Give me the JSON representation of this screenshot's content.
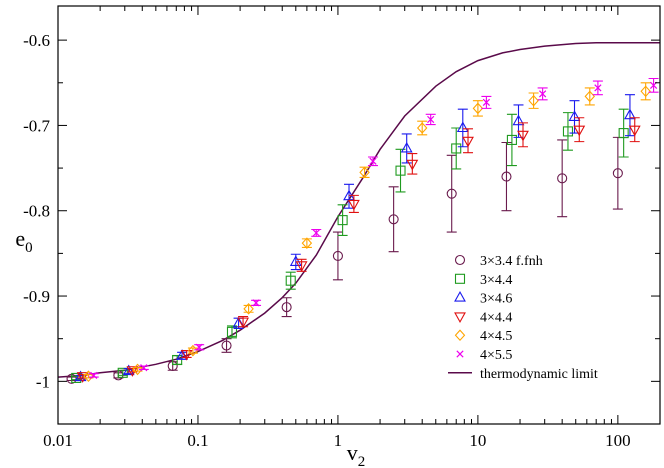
{
  "chart_data": {
    "type": "scatter",
    "xscale": "log",
    "xlim": [
      0.01,
      200
    ],
    "ylim": [
      -1.05,
      -0.56
    ],
    "xlabel": "v",
    "xlabel_sub": "2",
    "ylabel": "e",
    "ylabel_sub": "0",
    "grid": false,
    "legend_position": "center-right",
    "xticks": [
      0.01,
      0.1,
      1,
      10,
      100
    ],
    "xtick_labels": [
      "0.01",
      "0.1",
      "1",
      "10",
      "100"
    ],
    "yticks": [
      -1.0,
      -0.9,
      -0.8,
      -0.7,
      -0.6
    ],
    "ytick_labels": [
      "-1",
      "-0.9",
      "-0.8",
      "-0.7",
      "-0.6"
    ],
    "series": [
      {
        "name": "3×3.4  f.fnh",
        "marker": "circle",
        "color": "#6a1b4d",
        "x": [
          0.0125,
          0.027,
          0.066,
          0.16,
          0.43,
          1.0,
          2.5,
          6.5,
          16,
          40,
          100
        ],
        "y": [
          -0.997,
          -0.993,
          -0.982,
          -0.958,
          -0.913,
          -0.853,
          -0.81,
          -0.78,
          -0.76,
          -0.762,
          -0.756
        ],
        "err": [
          0.002,
          0.003,
          0.005,
          0.008,
          0.011,
          0.028,
          0.038,
          0.045,
          0.04,
          0.045,
          0.042
        ]
      },
      {
        "name": "3×4.4",
        "marker": "square",
        "color": "#1f9a1f",
        "x": [
          0.0135,
          0.029,
          0.071,
          0.175,
          0.46,
          1.08,
          2.8,
          7.0,
          17.5,
          44,
          110
        ],
        "y": [
          -0.996,
          -0.99,
          -0.975,
          -0.942,
          -0.882,
          -0.811,
          -0.753,
          -0.727,
          -0.717,
          -0.707,
          -0.709
        ],
        "err": [
          0.002,
          0.003,
          0.005,
          0.007,
          0.01,
          0.018,
          0.025,
          0.024,
          0.03,
          0.022,
          0.028
        ]
      },
      {
        "name": "3×4.6",
        "marker": "triangle-up",
        "color": "#1a1aee",
        "x": [
          0.0145,
          0.032,
          0.077,
          0.195,
          0.5,
          1.2,
          3.1,
          7.8,
          19.5,
          49,
          122
        ],
        "y": [
          -0.995,
          -0.988,
          -0.97,
          -0.932,
          -0.86,
          -0.783,
          -0.727,
          -0.703,
          -0.695,
          -0.69,
          -0.688
        ],
        "err": [
          0.002,
          0.003,
          0.004,
          0.006,
          0.009,
          0.014,
          0.017,
          0.022,
          0.019,
          0.019,
          0.024
        ]
      },
      {
        "name": "4×4.4",
        "marker": "triangle-down",
        "color": "#e01010",
        "x": [
          0.015,
          0.034,
          0.083,
          0.21,
          0.55,
          1.3,
          3.4,
          8.5,
          21,
          53,
          132
        ],
        "y": [
          -0.994,
          -0.987,
          -0.968,
          -0.93,
          -0.864,
          -0.792,
          -0.745,
          -0.718,
          -0.711,
          -0.705,
          -0.705
        ],
        "err": [
          0.002,
          0.002,
          0.004,
          0.006,
          0.007,
          0.01,
          0.012,
          0.014,
          0.014,
          0.014,
          0.014
        ]
      },
      {
        "name": "4×4.5",
        "marker": "diamond",
        "color": "#ffa500",
        "x": [
          0.0165,
          0.037,
          0.092,
          0.23,
          0.6,
          1.55,
          4.0,
          10,
          25,
          63,
          158
        ],
        "y": [
          -0.994,
          -0.986,
          -0.964,
          -0.915,
          -0.838,
          -0.755,
          -0.703,
          -0.68,
          -0.671,
          -0.666,
          -0.66
        ],
        "err": [
          0.002,
          0.002,
          0.003,
          0.004,
          0.005,
          0.006,
          0.008,
          0.009,
          0.009,
          0.01,
          0.01
        ]
      },
      {
        "name": "4×5.5",
        "marker": "x",
        "color": "#ee00ee",
        "x": [
          0.018,
          0.041,
          0.102,
          0.26,
          0.7,
          1.78,
          4.6,
          11.5,
          29,
          72,
          180
        ],
        "y": [
          -0.993,
          -0.984,
          -0.96,
          -0.908,
          -0.826,
          -0.742,
          -0.693,
          -0.673,
          -0.663,
          -0.656,
          -0.653
        ],
        "err": [
          0.002,
          0.002,
          0.003,
          0.003,
          0.004,
          0.005,
          0.006,
          0.007,
          0.007,
          0.008,
          0.008
        ]
      }
    ],
    "line": {
      "name": "thermodynamic limit",
      "color": "#5a0a4a",
      "x": [
        0.01,
        0.015,
        0.02,
        0.03,
        0.05,
        0.07,
        0.1,
        0.15,
        0.2,
        0.3,
        0.4,
        0.5,
        0.7,
        1.0,
        1.5,
        2.0,
        3.0,
        5.0,
        7.0,
        10,
        15,
        20,
        30,
        50,
        70,
        100,
        150,
        200
      ],
      "y": [
        -0.995,
        -0.993,
        -0.99,
        -0.987,
        -0.98,
        -0.974,
        -0.965,
        -0.952,
        -0.94,
        -0.92,
        -0.902,
        -0.885,
        -0.852,
        -0.807,
        -0.762,
        -0.728,
        -0.689,
        -0.654,
        -0.637,
        -0.624,
        -0.615,
        -0.611,
        -0.607,
        -0.604,
        -0.603,
        -0.603,
        -0.603,
        -0.603
      ]
    }
  }
}
